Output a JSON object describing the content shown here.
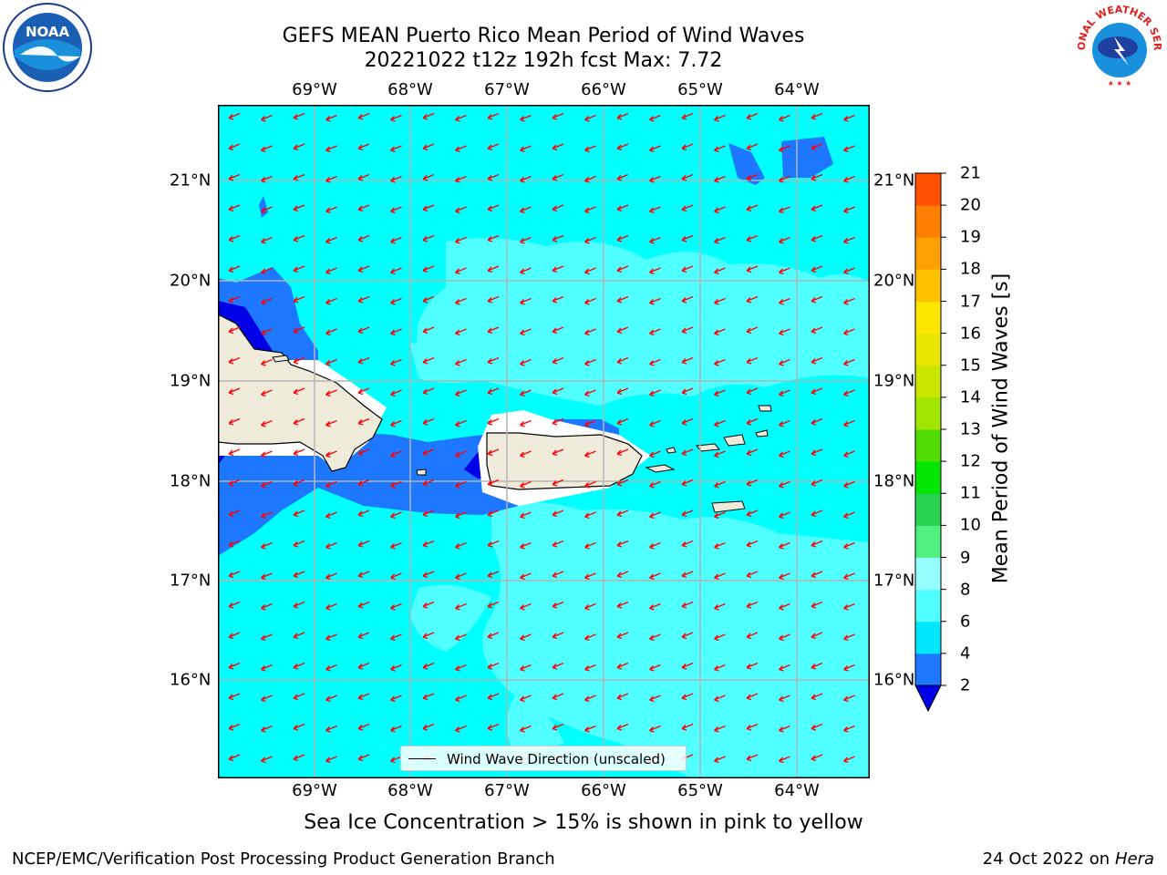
{
  "title": {
    "line1": "GEFS MEAN Puerto Rico Mean Period of Wind Waves",
    "line2": "20221022 t12z 192h fcst   Max: 7.72"
  },
  "logos": {
    "left": "NOAA",
    "right": "NATIONAL WEATHER SERVICE"
  },
  "map": {
    "lon_labels": [
      "69°W",
      "68°W",
      "67°W",
      "66°W",
      "65°W",
      "64°W"
    ],
    "lat_labels": [
      "21°N",
      "20°N",
      "19°N",
      "18°N",
      "17°N",
      "16°N"
    ],
    "legend": "Wind Wave Direction (unscaled)",
    "colors": {
      "ocean_4_6": "#00ffff",
      "ocean_6_8": "#50ffff",
      "ocean_2_4": "#1e78ff",
      "ocean_lt2": "#0000e6",
      "land": "#efebdb",
      "arrow": "#ff0000",
      "grid": "#b4b4b4"
    }
  },
  "colorbar": {
    "label": "Mean Period of Wind Waves [s]",
    "ticks": [
      "2",
      "4",
      "6",
      "8",
      "9",
      "10",
      "11",
      "12",
      "13",
      "14",
      "15",
      "16",
      "17",
      "18",
      "19",
      "20",
      "21"
    ],
    "colors": [
      "#1e78ff",
      "#00e6ff",
      "#50ffff",
      "#96ffff",
      "#50f080",
      "#28d250",
      "#00e600",
      "#50dc00",
      "#a0e600",
      "#c8e600",
      "#e6e600",
      "#ffe600",
      "#ffc000",
      "#ffa000",
      "#ff8000",
      "#ff5000",
      "#ff2000",
      "#ff0000"
    ],
    "extend_color": "#0000e6"
  },
  "subtitle": "Sea Ice Concentration > 15% is shown in pink to yellow",
  "footer": {
    "left": "NCEP/EMC/Verification Post Processing Product Generation Branch",
    "right_date": "24 Oct 2022 on ",
    "right_host": "Hera"
  }
}
